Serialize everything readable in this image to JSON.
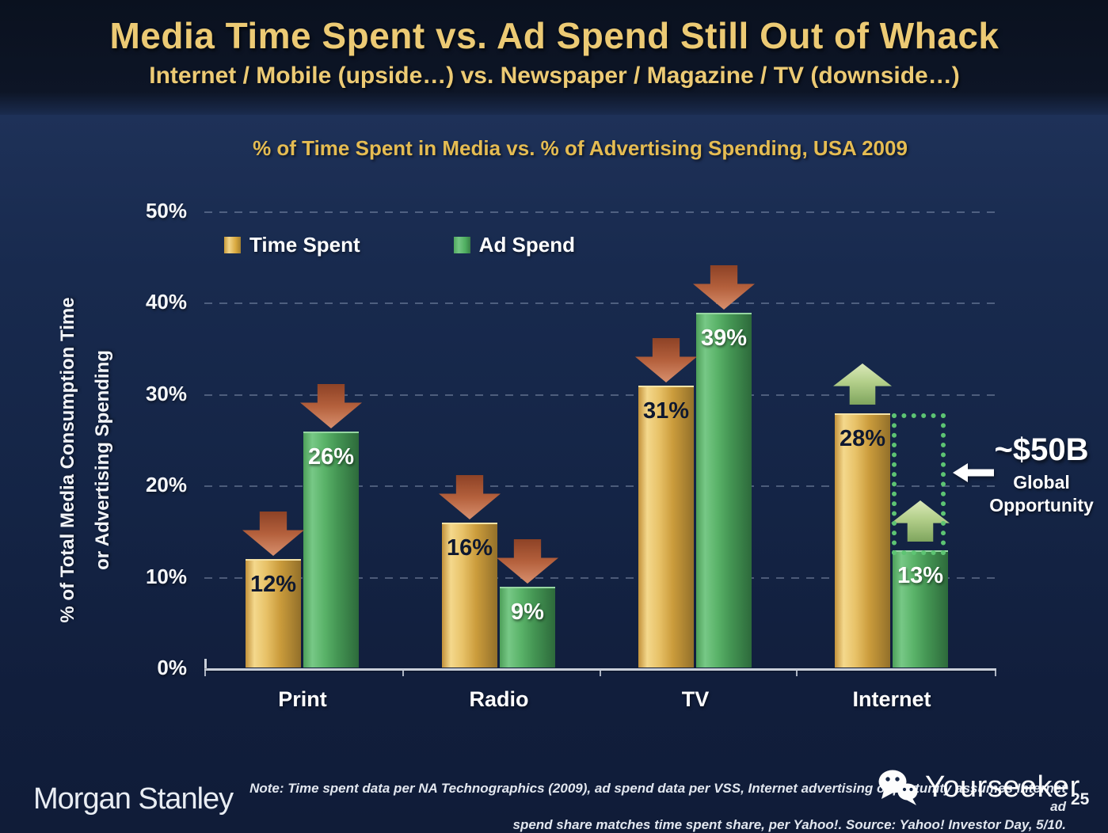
{
  "slide": {
    "title": "Media Time Spent vs. Ad Spend Still Out of Whack",
    "subtitle": "Internet / Mobile (upside…) vs. Newspaper / Magazine / TV (downside…)"
  },
  "chart_data": {
    "type": "bar",
    "title": "% of Time Spent in Media vs. % of Advertising Spending, USA 2009",
    "ylabel": [
      "% of Total Media Consumption Time",
      "or Advertising Spending"
    ],
    "xlabel": "",
    "ylim": [
      0,
      50
    ],
    "ytick_step": 10,
    "yticks": [
      "0%",
      "10%",
      "20%",
      "30%",
      "40%",
      "50%"
    ],
    "grid": "horizontal-dashed",
    "legend_position": "top-left-inside",
    "categories": [
      "Print",
      "Radio",
      "TV",
      "Internet"
    ],
    "series": [
      {
        "name": "Time Spent",
        "values": [
          12,
          16,
          31,
          28
        ]
      },
      {
        "name": "Ad Spend",
        "values": [
          26,
          9,
          39,
          13
        ]
      }
    ],
    "groups": [
      {
        "label": "Print",
        "time": 12,
        "time_label": "12%",
        "time_arrow": "down",
        "ad": 26,
        "ad_label": "26%",
        "ad_arrow": "down"
      },
      {
        "label": "Radio",
        "time": 16,
        "time_label": "16%",
        "time_arrow": "down",
        "ad": 9,
        "ad_label": "9%",
        "ad_arrow": "down"
      },
      {
        "label": "TV",
        "time": 31,
        "time_label": "31%",
        "time_arrow": "down",
        "ad": 39,
        "ad_label": "39%",
        "ad_arrow": "down"
      },
      {
        "label": "Internet",
        "time": 28,
        "time_label": "28%",
        "time_arrow": "up",
        "ad": 13,
        "ad_label": "13%",
        "ad_arrow": "up"
      }
    ],
    "annotation": {
      "value": "~$50B",
      "label_line1": "Global",
      "label_line2": "Opportunity"
    },
    "colors": {
      "time_spent": "#D9A93F",
      "ad_spend": "#4FAE60",
      "down_arrow": "#BE6C47",
      "up_arrow": "#A9C77F",
      "opportunity_outline": "#5DC473",
      "title_gold": "#ECCA74",
      "background": "#142445"
    }
  },
  "footer": {
    "brand": "Morgan Stanley",
    "note_line1": "Note: Time spent data per NA Technographics (2009), ad spend data per VSS, Internet advertising opportunity assumes Internet ad",
    "note_line2": "spend share matches time spent share, per Yahoo!. Source: Yahoo! Investor Day, 5/10.",
    "watermark": "Yourseeker",
    "watermark_icon": "wechat-icon",
    "page_number": "25"
  }
}
